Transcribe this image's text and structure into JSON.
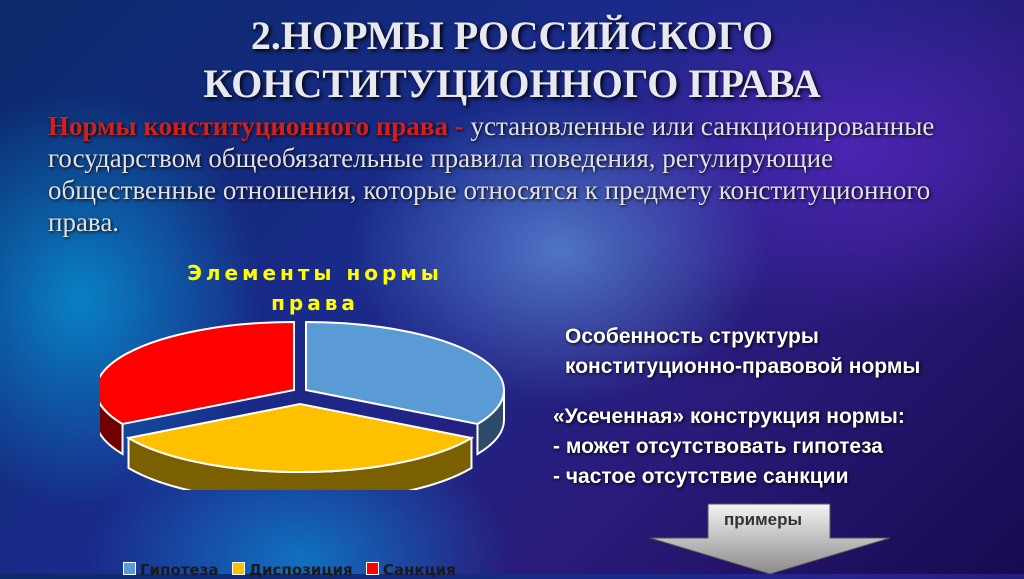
{
  "title": {
    "line1": "2.НОРМЫ РОССИЙСКОГО",
    "line2": "КОНСТИТУЦИОННОГО ПРАВА"
  },
  "definition": {
    "term": "Нормы конституционного права - ",
    "text": "установленные или санкционированные государством общеобязательные правила поведения, регулирующие общественные отношения, которые относятся к предмету конституционного права."
  },
  "chart_data": {
    "type": "pie",
    "title": "Элементы нормы права",
    "title_lines": [
      "Элементы нормы",
      "права"
    ],
    "style": "3d-exploded",
    "categories": [
      "Гипотеза",
      "Диспозиция",
      "Санкция"
    ],
    "values": [
      33.3,
      33.3,
      33.3
    ],
    "colors": [
      "#5b9bd5",
      "#ffc000",
      "#ff0000"
    ],
    "legend_position": "bottom"
  },
  "features": {
    "heading_line1": "Особенность структуры",
    "heading_line2": "конституционно-правовой нормы",
    "subheading": "«Усеченная» конструкция нормы:",
    "items": [
      "- может отсутствовать гипотеза",
      "- частое отсутствие санкции"
    ]
  },
  "button": {
    "label": "примеры",
    "icon": "down-arrow-icon"
  }
}
